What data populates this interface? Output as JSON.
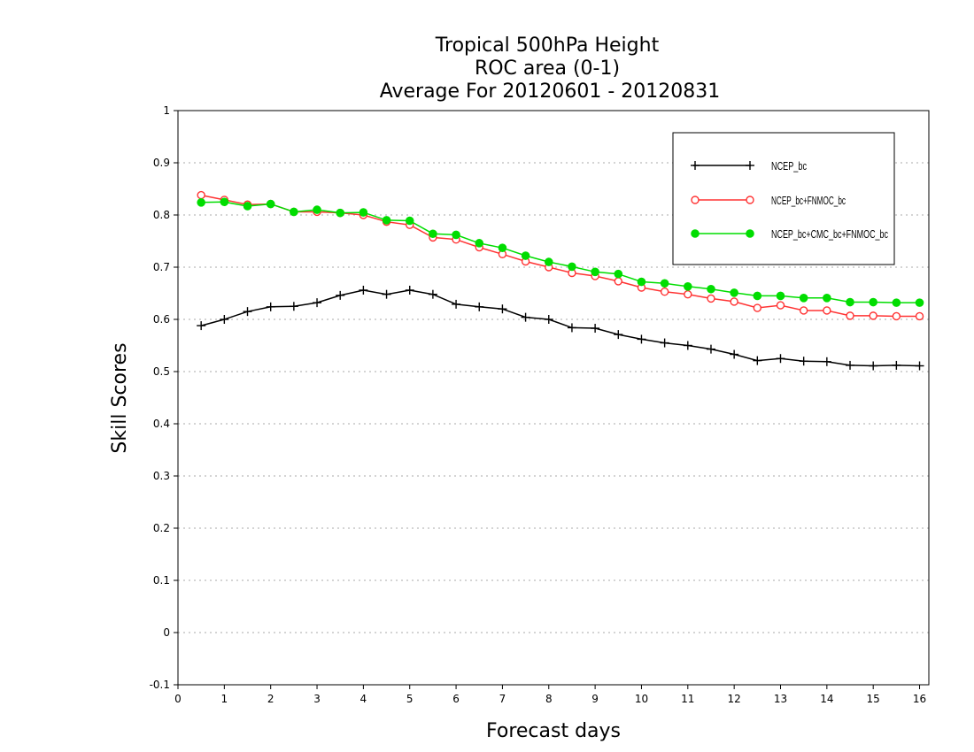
{
  "chart_data": {
    "type": "line",
    "title_lines": [
      "Tropical 500hPa Height",
      "ROC area (0-1)",
      "Average For 20120601 - 20120831"
    ],
    "xlabel": "Forecast days",
    "ylabel": "Skill Scores",
    "xlim": [
      0,
      16.2
    ],
    "ylim": [
      -0.1,
      1
    ],
    "xticks": [
      "0",
      "1",
      "2",
      "3",
      "4",
      "5",
      "6",
      "7",
      "8",
      "9",
      "10",
      "11",
      "12",
      "13",
      "14",
      "15",
      "16"
    ],
    "yticks": [
      "-0.1",
      "0",
      "0.1",
      "0.2",
      "0.3",
      "0.4",
      "0.5",
      "0.6",
      "0.7",
      "0.8",
      "0.9",
      "1"
    ],
    "grid": true,
    "legend_position": "top-right",
    "x": [
      0.5,
      1,
      1.5,
      2,
      2.5,
      3,
      3.5,
      4,
      4.5,
      5,
      5.5,
      6,
      6.5,
      7,
      7.5,
      8,
      8.5,
      9,
      9.5,
      10,
      10.5,
      11,
      11.5,
      12,
      12.5,
      13,
      13.5,
      14,
      14.5,
      15,
      15.5,
      16
    ],
    "series": [
      {
        "name": "NCEP_bc",
        "color": "#000000",
        "marker": "plus",
        "values": [
          0.588,
          0.6,
          0.615,
          0.624,
          0.625,
          0.632,
          0.646,
          0.656,
          0.648,
          0.656,
          0.648,
          0.629,
          0.624,
          0.62,
          0.604,
          0.6,
          0.584,
          0.583,
          0.571,
          0.562,
          0.555,
          0.55,
          0.543,
          0.533,
          0.521,
          0.525,
          0.52,
          0.519,
          0.512,
          0.511,
          0.512,
          0.511
        ]
      },
      {
        "name": "NCEP_bc+FNMOC_bc",
        "color": "#ff3333",
        "marker": "open-circle",
        "values": [
          0.838,
          0.829,
          0.82,
          0.821,
          0.806,
          0.806,
          0.804,
          0.8,
          0.787,
          0.781,
          0.757,
          0.753,
          0.738,
          0.725,
          0.711,
          0.7,
          0.689,
          0.683,
          0.673,
          0.661,
          0.653,
          0.648,
          0.64,
          0.634,
          0.622,
          0.627,
          0.617,
          0.617,
          0.607,
          0.607,
          0.606,
          0.606
        ]
      },
      {
        "name": "NCEP_bc+CMC_bc+FNMOC_bc",
        "color": "#00dd00",
        "marker": "filled-circle",
        "values": [
          0.824,
          0.825,
          0.817,
          0.821,
          0.806,
          0.81,
          0.804,
          0.805,
          0.79,
          0.789,
          0.764,
          0.762,
          0.746,
          0.737,
          0.722,
          0.71,
          0.701,
          0.691,
          0.687,
          0.672,
          0.669,
          0.663,
          0.658,
          0.651,
          0.645,
          0.645,
          0.641,
          0.641,
          0.633,
          0.633,
          0.632,
          0.632
        ]
      }
    ]
  }
}
